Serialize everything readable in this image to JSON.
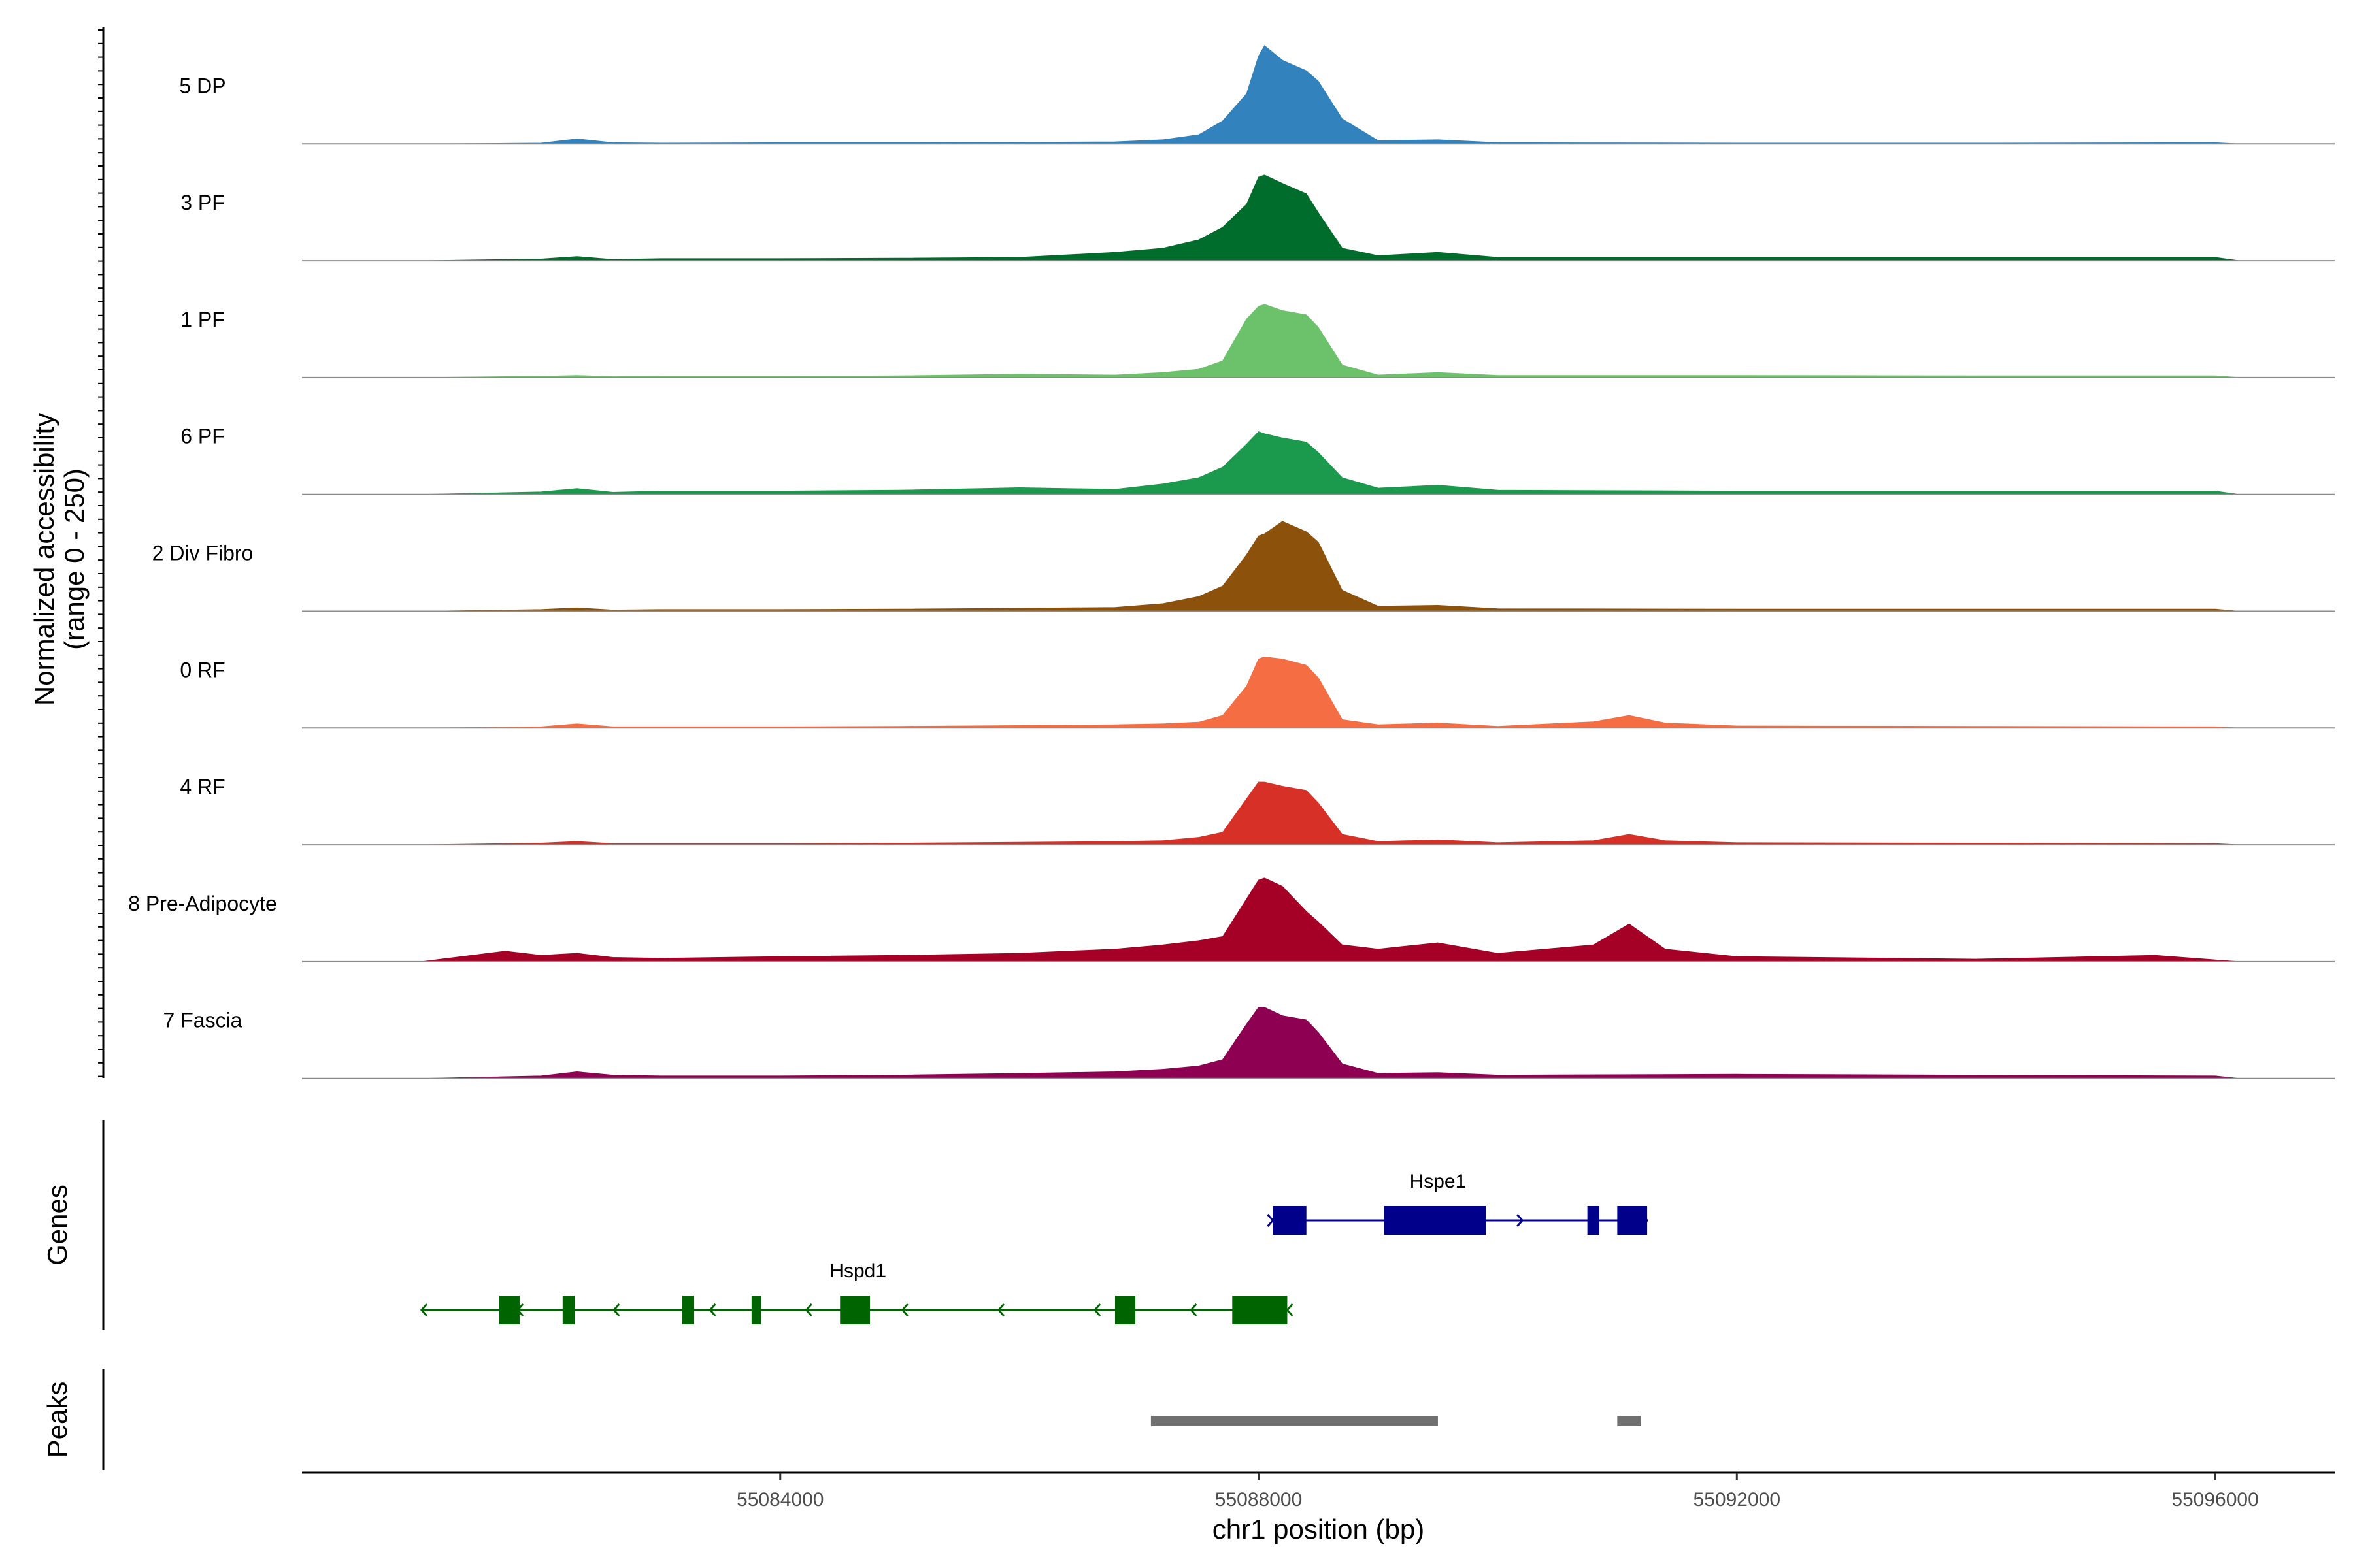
{
  "chart_data": {
    "type": "area",
    "title": "",
    "chromosome": "chr1",
    "xlabel": "chr1 position (bp)",
    "ylabel": "Normalized accessibility",
    "ylabel_sub": "(range 0 - 250)",
    "ylim": [
      0,
      250
    ],
    "xlim": [
      55080000,
      55097000
    ],
    "x_ticks": [
      55084000,
      55088000,
      55092000,
      55096000
    ],
    "x_tick_labels": [
      "55084000",
      "55088000",
      "55092000",
      "55096000"
    ],
    "genes_label": "Genes",
    "peaks_label": "Peaks",
    "series": [
      {
        "name": "5 DP",
        "color": "#3182BD",
        "x": [
          55081000,
          55082000,
          55082300,
          55082600,
          55083000,
          55084000,
          55085000,
          55086000,
          55086800,
          55087200,
          55087500,
          55087700,
          55087900,
          55088000,
          55088050,
          55088200,
          55088400,
          55088500,
          55088700,
          55089000,
          55089500,
          55090000,
          55092000,
          55094000,
          55096000,
          55096200
        ],
        "values": [
          0,
          2,
          12,
          3,
          2,
          3,
          3,
          4,
          5,
          10,
          22,
          55,
          120,
          210,
          235,
          200,
          175,
          150,
          60,
          8,
          10,
          3,
          2,
          2,
          3,
          0
        ]
      },
      {
        "name": "3 PF",
        "color": "#006D2C",
        "x": [
          55081000,
          55082000,
          55082300,
          55082600,
          55083000,
          55084000,
          55085000,
          55086000,
          55086800,
          55087200,
          55087500,
          55087700,
          55087900,
          55088000,
          55088050,
          55088200,
          55088400,
          55088500,
          55088700,
          55089000,
          55089500,
          55090000,
          55092000,
          55094000,
          55096000,
          55096200
        ],
        "values": [
          0,
          4,
          10,
          3,
          5,
          5,
          6,
          8,
          20,
          30,
          50,
          80,
          135,
          200,
          205,
          185,
          160,
          115,
          30,
          12,
          20,
          8,
          8,
          8,
          8,
          0
        ]
      },
      {
        "name": "1 PF",
        "color": "#6CC26A",
        "x": [
          55081000,
          55082000,
          55082300,
          55082600,
          55083000,
          55084000,
          55085000,
          55086000,
          55086800,
          55087200,
          55087500,
          55087700,
          55087900,
          55088000,
          55088050,
          55088200,
          55088400,
          55088500,
          55088700,
          55089000,
          55089500,
          55090000,
          55092000,
          55094000,
          55096000,
          55096200
        ],
        "values": [
          0,
          3,
          5,
          2,
          3,
          3,
          4,
          8,
          6,
          12,
          20,
          40,
          140,
          170,
          175,
          160,
          150,
          120,
          30,
          6,
          12,
          5,
          5,
          4,
          4,
          0
        ]
      },
      {
        "name": "6 PF",
        "color": "#1B9A4E",
        "x": [
          55081000,
          55082000,
          55082300,
          55082600,
          55083000,
          55084000,
          55085000,
          55086000,
          55086800,
          55087200,
          55087500,
          55087700,
          55087900,
          55088000,
          55088050,
          55088200,
          55088400,
          55088500,
          55088700,
          55089000,
          55089500,
          55090000,
          55092000,
          55094000,
          55096000,
          55096200
        ],
        "values": [
          0,
          6,
          14,
          5,
          8,
          8,
          10,
          16,
          12,
          25,
          40,
          65,
          120,
          150,
          145,
          135,
          125,
          100,
          40,
          15,
          22,
          10,
          8,
          8,
          8,
          0
        ]
      },
      {
        "name": "2 Div Fibro",
        "color": "#8C510A",
        "x": [
          55081000,
          55082000,
          55082300,
          55082600,
          55083000,
          55084000,
          55085000,
          55086000,
          55086800,
          55087200,
          55087500,
          55087700,
          55087900,
          55088000,
          55088050,
          55088200,
          55088400,
          55088500,
          55088700,
          55089000,
          55089500,
          55090000,
          55092000,
          55094000,
          55096000,
          55096200
        ],
        "values": [
          0,
          4,
          8,
          3,
          4,
          4,
          5,
          7,
          9,
          18,
          35,
          60,
          135,
          180,
          185,
          215,
          190,
          165,
          50,
          12,
          14,
          6,
          5,
          5,
          5,
          0
        ]
      },
      {
        "name": "0 RF",
        "color": "#F46D43",
        "x": [
          55081000,
          55082000,
          55082300,
          55082600,
          55083000,
          55084000,
          55085000,
          55086000,
          55086800,
          55087200,
          55087500,
          55087700,
          55087900,
          55088000,
          55088050,
          55088200,
          55088400,
          55088500,
          55088700,
          55089000,
          55089500,
          55090000,
          55090800,
          55091100,
          55091400,
          55092000,
          55094000,
          55096000,
          55096200
        ],
        "values": [
          0,
          3,
          10,
          3,
          3,
          3,
          4,
          6,
          8,
          10,
          14,
          30,
          100,
          165,
          170,
          165,
          150,
          120,
          20,
          8,
          12,
          4,
          15,
          30,
          12,
          5,
          4,
          3,
          0
        ]
      },
      {
        "name": "4 RF",
        "color": "#D73027",
        "x": [
          55081000,
          55082000,
          55082300,
          55082600,
          55083000,
          55084000,
          55085000,
          55086000,
          55086800,
          55087200,
          55087500,
          55087700,
          55087900,
          55088000,
          55088050,
          55088200,
          55088400,
          55088500,
          55088700,
          55089000,
          55089500,
          55090000,
          55090800,
          55091100,
          55091400,
          55092000,
          55094000,
          55096000,
          55096200
        ],
        "values": [
          0,
          4,
          8,
          3,
          3,
          3,
          4,
          6,
          8,
          10,
          18,
          30,
          110,
          150,
          150,
          140,
          130,
          100,
          25,
          8,
          12,
          5,
          10,
          25,
          10,
          5,
          4,
          3,
          0
        ]
      },
      {
        "name": "8 Pre-Adipocyte",
        "color": "#A50026",
        "x": [
          55081000,
          55081700,
          55082000,
          55082300,
          55082600,
          55083000,
          55084000,
          55085000,
          55086000,
          55086800,
          55087200,
          55087500,
          55087700,
          55087900,
          55088000,
          55088050,
          55088200,
          55088400,
          55088500,
          55088700,
          55089000,
          55089500,
          55090000,
          55090800,
          55091100,
          55091400,
          55092000,
          55094000,
          55095500,
          55096000,
          55096200
        ],
        "values": [
          0,
          25,
          15,
          20,
          10,
          8,
          12,
          15,
          20,
          30,
          40,
          50,
          60,
          150,
          195,
          200,
          180,
          120,
          95,
          40,
          30,
          45,
          20,
          40,
          90,
          30,
          12,
          6,
          15,
          4,
          0
        ]
      },
      {
        "name": "7 Fascia",
        "color": "#8E0152",
        "x": [
          55081000,
          55082000,
          55082300,
          55082600,
          55083000,
          55084000,
          55085000,
          55086000,
          55086800,
          55087200,
          55087500,
          55087700,
          55087900,
          55088000,
          55088050,
          55088200,
          55088400,
          55088500,
          55088700,
          55089000,
          55089500,
          55090000,
          55092000,
          55094000,
          55096000,
          55096200
        ],
        "values": [
          0,
          6,
          16,
          8,
          6,
          6,
          8,
          12,
          16,
          22,
          30,
          45,
          130,
          170,
          170,
          150,
          140,
          110,
          35,
          12,
          14,
          8,
          10,
          8,
          6,
          0
        ]
      }
    ],
    "genes": [
      {
        "name": "Hspe1",
        "strand": "+",
        "color": "#00008B",
        "start": 55088120,
        "end": 55091250,
        "exons": [
          [
            55088120,
            55088400
          ],
          [
            55089050,
            55089900
          ],
          [
            55090750,
            55090850
          ],
          [
            55091000,
            55091250
          ]
        ]
      },
      {
        "name": "Hspd1",
        "strand": "-",
        "color": "#006400",
        "start": 55081000,
        "end": 55088240,
        "exons": [
          [
            55081650,
            55081820
          ],
          [
            55082180,
            55082280
          ],
          [
            55083180,
            55083280
          ],
          [
            55083760,
            55083840
          ],
          [
            55084500,
            55084750
          ],
          [
            55086800,
            55086970
          ],
          [
            55087780,
            55088240
          ]
        ]
      }
    ],
    "peaks": [
      {
        "start": 55087100,
        "end": 55089500,
        "color": "#707070"
      },
      {
        "start": 55091000,
        "end": 55091200,
        "color": "#707070"
      }
    ]
  }
}
